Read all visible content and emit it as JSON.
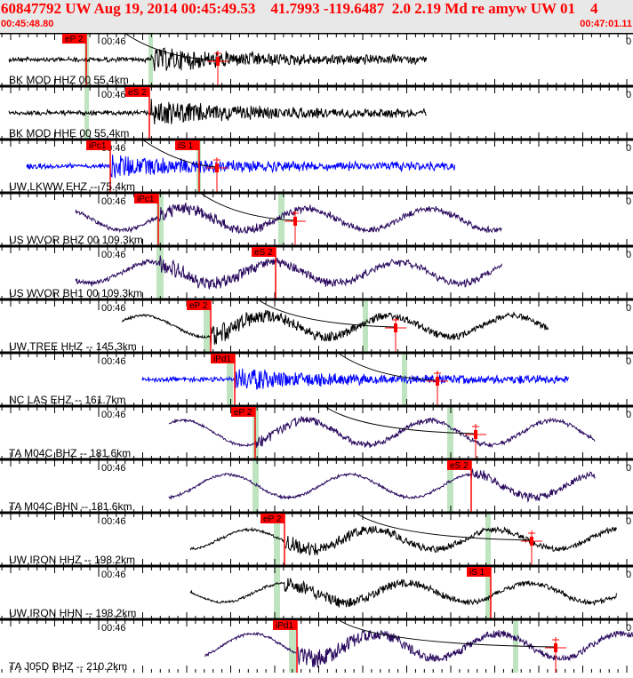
{
  "header": {
    "title": "60847792 UW Aug 19, 2014 00:45:49.53    41.7993 -119.6487  2.0 2.19 Md re amyw UW 01    4",
    "start_time": "00:45:48.80",
    "end_time": "00:47:01.11"
  },
  "time_tick_label": "00:46",
  "edge_tick_label": "0",
  "colors": {
    "pick": "#ff0000",
    "band": "#bfe5c0",
    "black": "#000000",
    "blue": "#0000ff",
    "purple": "#2a0a5e",
    "header_bg": "#e8e8e8"
  },
  "panels": [
    {
      "label": "BK MOD HHZ 00 55.4km",
      "phases": [
        "eP 2"
      ],
      "color": "black"
    },
    {
      "label": "BK MOD HHE 00 55.4km",
      "phases": [
        "eS 2"
      ],
      "color": "black"
    },
    {
      "label": "UW LKWW EHZ -- 75.4km",
      "phases": [
        "iPc1",
        "iS 1"
      ],
      "color": "blue"
    },
    {
      "label": "US WVOR BHZ 00 109.3km",
      "phases": [
        "iPc1"
      ],
      "color": "purple"
    },
    {
      "label": "US WVOR BH1 00 109.3km",
      "phases": [
        "eS 2"
      ],
      "color": "purple"
    },
    {
      "label": "UW TREE HHZ -- 145.3km",
      "phases": [
        "eP 2"
      ],
      "color": "black"
    },
    {
      "label": "NC LAS EHZ -- 161.7km",
      "phases": [
        "iPd1"
      ],
      "color": "blue"
    },
    {
      "label": "TA M04C BHZ -- 181.6km",
      "phases": [
        "eP 2"
      ],
      "color": "purple"
    },
    {
      "label": "TA M04C BHN -- 181.6km",
      "phases": [
        "eS 2"
      ],
      "color": "purple"
    },
    {
      "label": "UW IRON HHZ -- 198.2km",
      "phases": [
        "eP 2"
      ],
      "color": "black"
    },
    {
      "label": "UW IRON HHN -- 198.2km",
      "phases": [
        "iS 1"
      ],
      "color": "black"
    },
    {
      "label": "TA J05D BHZ -- 210.2km",
      "phases": [
        "iPd1"
      ],
      "color": "purple"
    }
  ]
}
